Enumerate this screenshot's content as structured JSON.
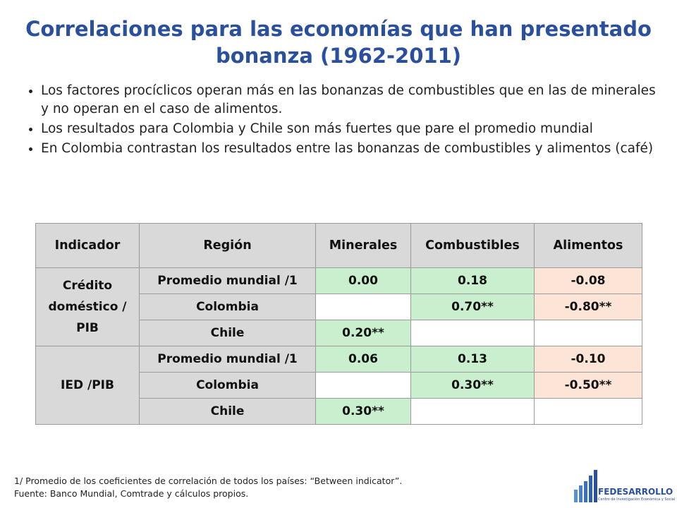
{
  "title": "Correlaciones para las economías que han presentado bonanza (1962-2011)",
  "bullets": [
    "Los factores procíclicos operan más en las bonanzas de combustibles que en las de minerales y no operan en el caso de alimentos.",
    "Los resultados para Colombia y Chile son más fuertes que pare el promedio mundial",
    "En Colombia contrastan los resultados entre las bonanzas de combustibles y alimentos (café)"
  ],
  "table": {
    "header": [
      "Indicador",
      "Región",
      "Minerales",
      "Combustibles",
      "Alimentos"
    ],
    "groups": [
      {
        "indicator": "Crédito doméstico / PIB",
        "rows": [
          {
            "region": "Promedio mundial /1",
            "minerales": "0.00",
            "combustibles": "0.18",
            "alimentos": "-0.08"
          },
          {
            "region": "Colombia",
            "combustibles": "0.70**",
            "alimentos": "-0.80**"
          },
          {
            "region": "Chile",
            "minerales": "0.20**"
          }
        ]
      },
      {
        "indicator": "IED /PIB",
        "rows": [
          {
            "region": "Promedio mundial /1",
            "minerales": "0.06",
            "combustibles": "0.13",
            "alimentos": "-0.10"
          },
          {
            "region": "Colombia",
            "combustibles": "0.30**",
            "alimentos": "-0.50**"
          },
          {
            "region": "Chile",
            "minerales": "0.30**"
          }
        ]
      }
    ]
  },
  "footnotes": [
    "1/ Promedio de los coeficientes de correlación de todos los países: “Between indicator”.",
    "Fuente: Banco Mundial, Comtrade y cálculos propios."
  ],
  "logo": {
    "name": "FEDESARROLLO",
    "subtitle": "Centro de Investigación Económica y Social"
  }
}
